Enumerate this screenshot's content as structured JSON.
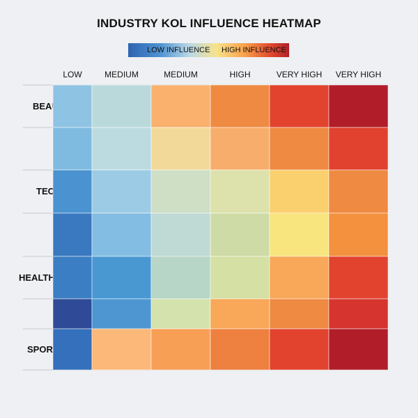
{
  "chart_data": {
    "type": "heatmap",
    "title": "INDUSTRY KOL INFLUENCE HEATMAP",
    "legend": {
      "low_label": "LOW INFLUENCE",
      "high_label": "HIGH INFLUENCE",
      "placement": "top-center"
    },
    "columns": [
      "LOW",
      "MEDIUM",
      "MEDIUM",
      "HIGH",
      "VERY HIGH",
      "VERY HIGH"
    ],
    "rows": [
      "BEAUTY",
      "",
      "TECH",
      "",
      "HEALTHCARE",
      "",
      "SPORTS"
    ],
    "colors": [
      [
        "#8fc3e4",
        "#bad9db",
        "#f9b16d",
        "#ef8a42",
        "#e1432f",
        "#b11e2a"
      ],
      [
        "#7fbbe0",
        "#bcdbe1",
        "#f2d99a",
        "#f7ae6c",
        "#ef8a42",
        "#e0422f"
      ],
      [
        "#4a93d0",
        "#9ccbe6",
        "#cfdfc6",
        "#dde2ac",
        "#fad06f",
        "#ef8a42"
      ],
      [
        "#3a79c0",
        "#83bde3",
        "#bfd9d5",
        "#cfdba6",
        "#f8e57e",
        "#f3913f"
      ],
      [
        "#3c7ec4",
        "#4a98d2",
        "#b7d6c7",
        "#d5e0a4",
        "#f8a858",
        "#e1432f"
      ],
      [
        "#2f4a96",
        "#4d96d2",
        "#d4e3ad",
        "#f8a858",
        "#ef8a42",
        "#d6342e"
      ],
      [
        "#3470bb",
        "#fbb879",
        "#f89f56",
        "#ee8040",
        "#e1432f",
        "#b11e2a"
      ]
    ]
  }
}
